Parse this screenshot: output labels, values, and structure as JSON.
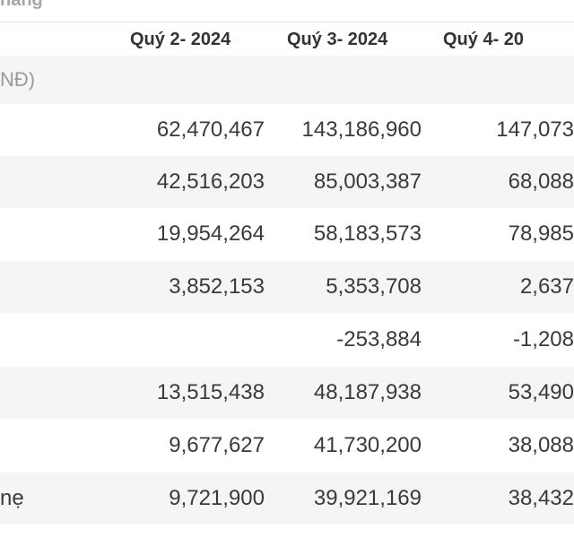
{
  "top_fragment": "nang",
  "header": {
    "columns": [
      "Quý 2- 2024",
      "Quý 3- 2024",
      "Quý 4- 20"
    ]
  },
  "unit_label": "NĐ)",
  "rows": [
    {
      "label": "",
      "values": [
        "62,470,467",
        "143,186,960",
        "147,073"
      ]
    },
    {
      "label": "",
      "values": [
        "42,516,203",
        "85,003,387",
        "68,088"
      ]
    },
    {
      "label": "",
      "values": [
        "19,954,264",
        "58,183,573",
        "78,985"
      ]
    },
    {
      "label": "",
      "values": [
        "3,852,153",
        "5,353,708",
        "2,637"
      ]
    },
    {
      "label": "",
      "values": [
        "",
        "-253,884",
        "-1,208"
      ]
    },
    {
      "label": "",
      "values": [
        "13,515,438",
        "48,187,938",
        "53,490"
      ]
    },
    {
      "label": "",
      "values": [
        "9,677,627",
        "41,730,200",
        "38,088"
      ]
    },
    {
      "label": "nẹ",
      "values": [
        "9,721,900",
        "39,921,169",
        "38,432"
      ]
    }
  ]
}
